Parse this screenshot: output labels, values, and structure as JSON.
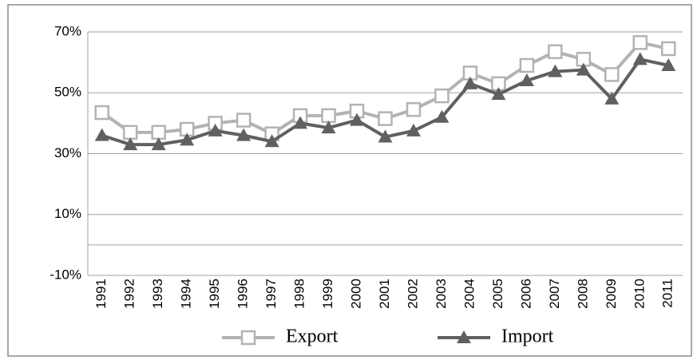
{
  "chart_data": {
    "type": "line",
    "categories": [
      "1991",
      "1992",
      "1993",
      "1994",
      "1995",
      "1996",
      "1997",
      "1998",
      "1999",
      "2000",
      "2001",
      "2002",
      "2003",
      "2004",
      "2005",
      "2006",
      "2007",
      "2008",
      "2009",
      "2010",
      "2011"
    ],
    "series": [
      {
        "name": "Export",
        "color": "#b3b3b3",
        "marker": "square",
        "values": [
          43.5,
          37,
          37,
          38,
          40,
          41,
          36.5,
          42.5,
          42.5,
          44,
          41.5,
          44.5,
          49,
          56.5,
          53,
          59,
          63.5,
          61,
          56,
          66.5,
          64.5
        ]
      },
      {
        "name": "Import",
        "color": "#606060",
        "marker": "triangle",
        "values": [
          36,
          33,
          33,
          34.5,
          37.5,
          36,
          34,
          40,
          38.5,
          41,
          35.5,
          37.5,
          42,
          53,
          49.5,
          54,
          57,
          57.5,
          48,
          61,
          59
        ]
      }
    ],
    "ylim": [
      -10,
      70
    ],
    "yticks": [
      {
        "value": -10,
        "label": "-10%"
      },
      {
        "value": 10,
        "label": "10%"
      },
      {
        "value": 30,
        "label": "30%"
      },
      {
        "value": 50,
        "label": "50%"
      },
      {
        "value": 70,
        "label": "70%"
      }
    ],
    "grid": true,
    "legend": "bottom"
  }
}
